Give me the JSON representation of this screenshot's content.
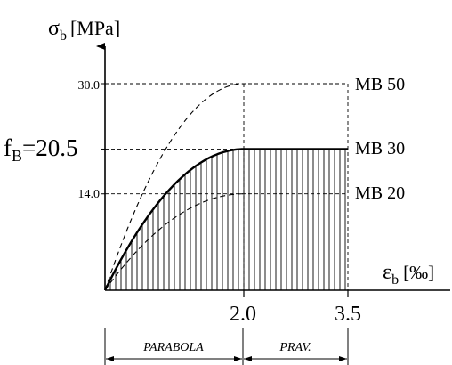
{
  "chart_data": {
    "type": "line",
    "y_axis": {
      "symbol": "σ",
      "subscript": "b",
      "unit": "[MPa]"
    },
    "x_axis": {
      "symbol": "ε",
      "subscript": "b",
      "unit": "[‰]"
    },
    "xlim": [
      0,
      3.5
    ],
    "ylim": [
      0,
      30
    ],
    "x_ticks": [
      "2.0",
      "3.5"
    ],
    "y_ticks": [
      {
        "value": 30,
        "label": "30.0"
      },
      {
        "value": 14,
        "label": "14.0"
      }
    ],
    "fb": {
      "prefix": "f",
      "subscript": "B",
      "suffix": "=20.5",
      "value": 20.5
    },
    "series": [
      {
        "name": "MB 50",
        "peak": 30.0,
        "style": "dashed",
        "peak_strain": 2.0,
        "ultimate_strain": 2.0
      },
      {
        "name": "MB 30",
        "peak": 20.5,
        "style": "solid-bold",
        "peak_strain": 2.0,
        "ultimate_strain": 3.5,
        "hatched": true
      },
      {
        "name": "MB 20",
        "peak": 14.0,
        "style": "dashed",
        "peak_strain": 2.0,
        "ultimate_strain": 2.0
      }
    ],
    "regions": [
      {
        "label": "PARABOLA",
        "from": 0,
        "to": 2.0
      },
      {
        "label": "PRAV.",
        "from": 2.0,
        "to": 3.5
      }
    ]
  }
}
